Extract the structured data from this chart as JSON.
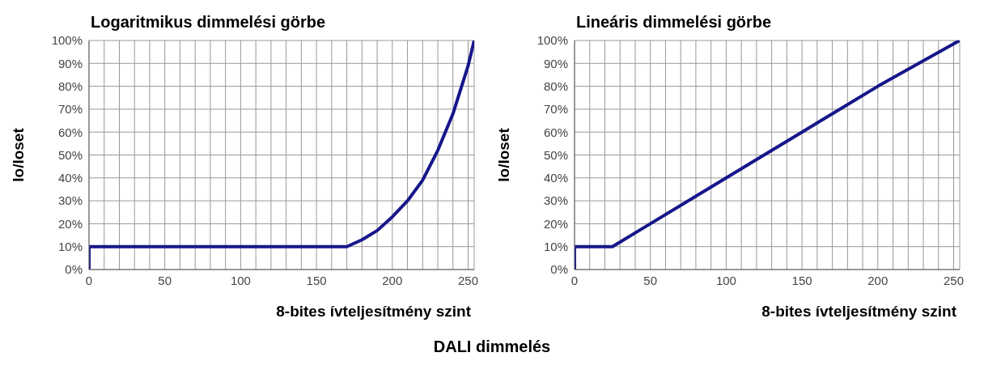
{
  "chart_data": [
    {
      "type": "line",
      "title": "Logaritmikus dimmelési görbe",
      "xlabel": "8-bites ívteljesítmény szint",
      "ylabel": "Io/Ioset",
      "xlim": [
        0,
        254
      ],
      "ylim": [
        0,
        100
      ],
      "xticks": [
        0,
        {
          "value": 10,
          "label": null
        },
        {
          "value": 20,
          "label": null
        },
        {
          "value": 30,
          "label": null
        },
        {
          "value": 40,
          "label": null
        },
        50,
        {
          "value": 60,
          "label": null
        },
        {
          "value": 70,
          "label": null
        },
        {
          "value": 80,
          "label": null
        },
        {
          "value": 90,
          "label": null
        },
        100,
        {
          "value": 110,
          "label": null
        },
        {
          "value": 120,
          "label": null
        },
        {
          "value": 130,
          "label": null
        },
        {
          "value": 140,
          "label": null
        },
        150,
        {
          "value": 160,
          "label": null
        },
        {
          "value": 170,
          "label": null
        },
        {
          "value": 180,
          "label": null
        },
        {
          "value": 190,
          "label": null
        },
        200,
        {
          "value": 210,
          "label": null
        },
        {
          "value": 220,
          "label": null
        },
        {
          "value": 230,
          "label": null
        },
        {
          "value": 240,
          "label": null
        },
        250
      ],
      "yticks": [
        {
          "value": 0,
          "label": "0%"
        },
        {
          "value": 10,
          "label": "10%"
        },
        {
          "value": 20,
          "label": "20%"
        },
        {
          "value": 30,
          "label": "30%"
        },
        {
          "value": 40,
          "label": "40%"
        },
        {
          "value": 50,
          "label": "50%"
        },
        {
          "value": 60,
          "label": "60%"
        },
        {
          "value": 70,
          "label": "70%"
        },
        {
          "value": 80,
          "label": "80%"
        },
        {
          "value": 90,
          "label": "90%"
        },
        {
          "value": 100,
          "label": "100%"
        }
      ],
      "grid": true,
      "marker": "none",
      "line_style": "solid",
      "series": [
        {
          "color": "#16168a",
          "x": [
            0,
            0,
            170,
            180,
            190,
            200,
            210,
            220,
            230,
            240,
            250,
            254
          ],
          "values": [
            0,
            10,
            10,
            13,
            17,
            23,
            30,
            39,
            52,
            68,
            89,
            100
          ]
        }
      ]
    },
    {
      "type": "line",
      "title": "Lineáris dimmelési görbe",
      "xlabel": "8-bites ívteljesítmény szint",
      "ylabel": "Io/Ioset",
      "xlim": [
        0,
        254
      ],
      "ylim": [
        0,
        100
      ],
      "xticks": [
        0,
        {
          "value": 10,
          "label": null
        },
        {
          "value": 20,
          "label": null
        },
        {
          "value": 30,
          "label": null
        },
        {
          "value": 40,
          "label": null
        },
        50,
        {
          "value": 60,
          "label": null
        },
        {
          "value": 70,
          "label": null
        },
        {
          "value": 80,
          "label": null
        },
        {
          "value": 90,
          "label": null
        },
        100,
        {
          "value": 110,
          "label": null
        },
        {
          "value": 120,
          "label": null
        },
        {
          "value": 130,
          "label": null
        },
        {
          "value": 140,
          "label": null
        },
        150,
        {
          "value": 160,
          "label": null
        },
        {
          "value": 170,
          "label": null
        },
        {
          "value": 180,
          "label": null
        },
        {
          "value": 190,
          "label": null
        },
        200,
        {
          "value": 210,
          "label": null
        },
        {
          "value": 220,
          "label": null
        },
        {
          "value": 230,
          "label": null
        },
        {
          "value": 240,
          "label": null
        },
        250
      ],
      "yticks": [
        {
          "value": 0,
          "label": "0%"
        },
        {
          "value": 10,
          "label": "10%"
        },
        {
          "value": 20,
          "label": "20%"
        },
        {
          "value": 30,
          "label": "30%"
        },
        {
          "value": 40,
          "label": "40%"
        },
        {
          "value": 50,
          "label": "50%"
        },
        {
          "value": 60,
          "label": "60%"
        },
        {
          "value": 70,
          "label": "70%"
        },
        {
          "value": 80,
          "label": "80%"
        },
        {
          "value": 90,
          "label": "90%"
        },
        {
          "value": 100,
          "label": "100%"
        }
      ],
      "grid": true,
      "marker": "none",
      "line_style": "solid",
      "annotations": [
        "DALI dimmelés"
      ],
      "series": [
        {
          "color": "#16168a",
          "x": [
            0,
            0,
            25,
            50,
            100,
            110,
            115,
            150,
            200,
            254
          ],
          "values": [
            0,
            10,
            10,
            20,
            40,
            44,
            46,
            60,
            80,
            100
          ]
        }
      ]
    }
  ]
}
